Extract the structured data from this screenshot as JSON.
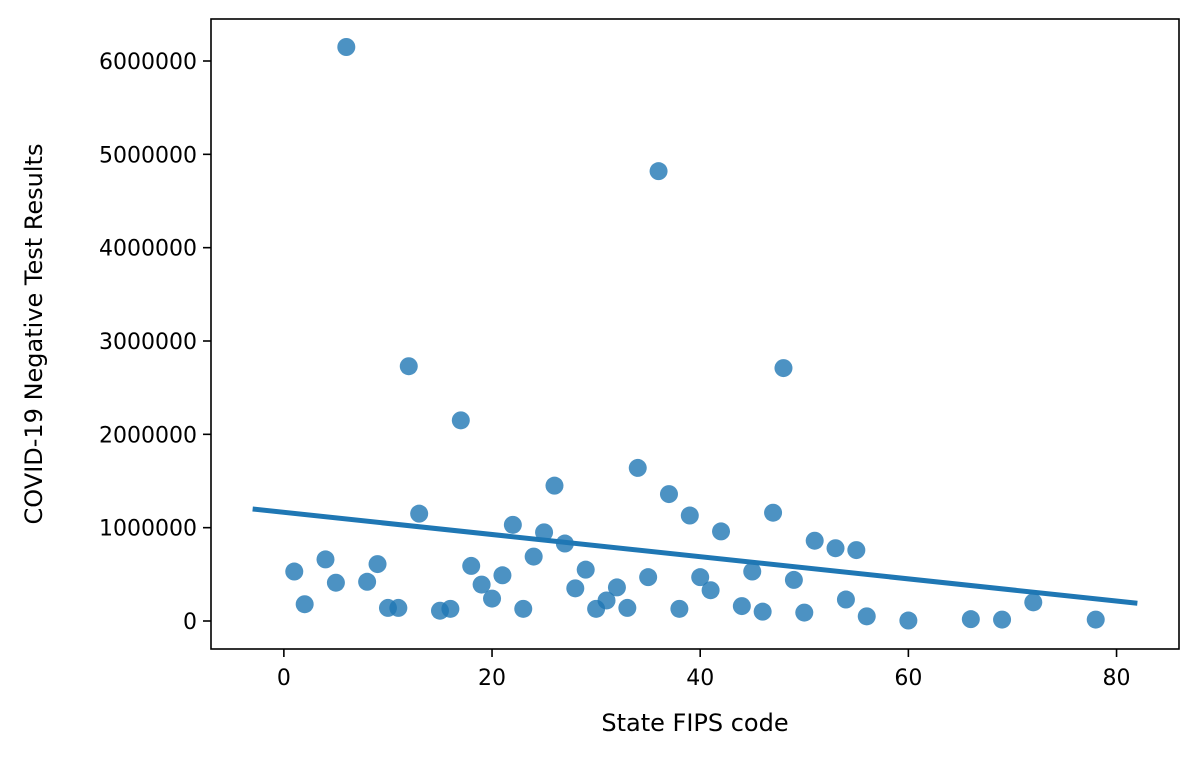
{
  "chart_data": {
    "type": "scatter",
    "title": "",
    "xlabel": "State FIPS code",
    "ylabel": "COVID-19 Negative Test Results",
    "xlim": [
      -7,
      86
    ],
    "ylim": [
      -300000,
      6450000
    ],
    "xticks": [
      0,
      20,
      40,
      60,
      80
    ],
    "xtick_labels": [
      "0",
      "20",
      "40",
      "60",
      "80"
    ],
    "yticks": [
      0,
      1000000,
      2000000,
      3000000,
      4000000,
      5000000,
      6000000
    ],
    "ytick_labels": [
      "0",
      "1000000",
      "2000000",
      "3000000",
      "4000000",
      "5000000",
      "6000000"
    ],
    "grid": false,
    "legend": null,
    "series": [
      {
        "x": [
          1,
          2,
          4,
          5,
          6,
          8,
          9,
          10,
          11,
          12,
          13,
          15,
          16,
          17,
          18,
          19,
          20,
          21,
          22,
          23,
          24,
          25,
          26,
          27,
          28,
          29,
          30,
          31,
          32,
          33,
          34,
          35,
          36,
          37,
          38,
          39,
          40,
          41,
          42,
          44,
          45,
          46,
          47,
          48,
          49,
          50,
          51,
          53,
          54,
          55,
          56,
          60,
          66,
          69,
          72,
          78
        ],
        "y": [
          530000,
          180000,
          660000,
          410000,
          6150000,
          420000,
          610000,
          140000,
          140000,
          2730000,
          1150000,
          110000,
          130000,
          2150000,
          590000,
          390000,
          240000,
          490000,
          1030000,
          130000,
          690000,
          950000,
          1450000,
          830000,
          350000,
          550000,
          130000,
          220000,
          360000,
          140000,
          1640000,
          470000,
          4820000,
          1360000,
          130000,
          1130000,
          470000,
          330000,
          960000,
          160000,
          530000,
          100000,
          1160000,
          2710000,
          440000,
          90000,
          860000,
          780000,
          230000,
          760000,
          50000,
          5000,
          20000,
          15000,
          200000,
          15000
        ]
      }
    ],
    "regression_line": {
      "x": [
        -3,
        82
      ],
      "y": [
        1200000,
        190000
      ]
    },
    "colors": {
      "points": "#1f77b4",
      "line": "#1f77b4",
      "axes": "#000000"
    }
  }
}
